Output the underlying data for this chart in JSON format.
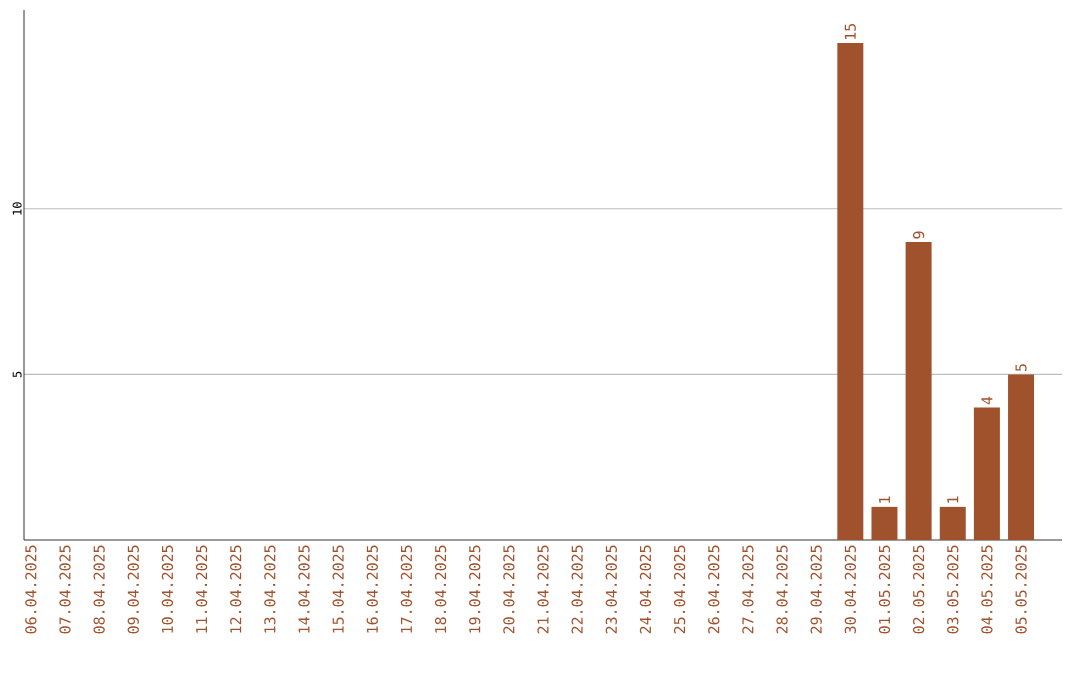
{
  "chart_data": {
    "type": "bar",
    "categories": [
      "06.04.2025",
      "07.04.2025",
      "08.04.2025",
      "09.04.2025",
      "10.04.2025",
      "11.04.2025",
      "12.04.2025",
      "13.04.2025",
      "14.04.2025",
      "15.04.2025",
      "16.04.2025",
      "17.04.2025",
      "18.04.2025",
      "19.04.2025",
      "20.04.2025",
      "21.04.2025",
      "22.04.2025",
      "23.04.2025",
      "24.04.2025",
      "25.04.2025",
      "26.04.2025",
      "27.04.2025",
      "28.04.2025",
      "29.04.2025",
      "30.04.2025",
      "01.05.2025",
      "02.05.2025",
      "03.05.2025",
      "04.05.2025",
      "05.05.2025"
    ],
    "values": [
      0,
      0,
      0,
      0,
      0,
      0,
      0,
      0,
      0,
      0,
      0,
      0,
      0,
      0,
      0,
      0,
      0,
      0,
      0,
      0,
      0,
      0,
      0,
      0,
      15,
      1,
      9,
      1,
      4,
      5
    ],
    "value_labels": [
      null,
      null,
      null,
      null,
      null,
      null,
      null,
      null,
      null,
      null,
      null,
      null,
      null,
      null,
      null,
      null,
      null,
      null,
      null,
      null,
      null,
      null,
      null,
      null,
      "15",
      "1",
      "9",
      "1",
      "4",
      "5"
    ],
    "color": "#a0522d",
    "ylim": [
      0,
      16
    ],
    "yticks": [
      5,
      10
    ],
    "grid": "y"
  }
}
